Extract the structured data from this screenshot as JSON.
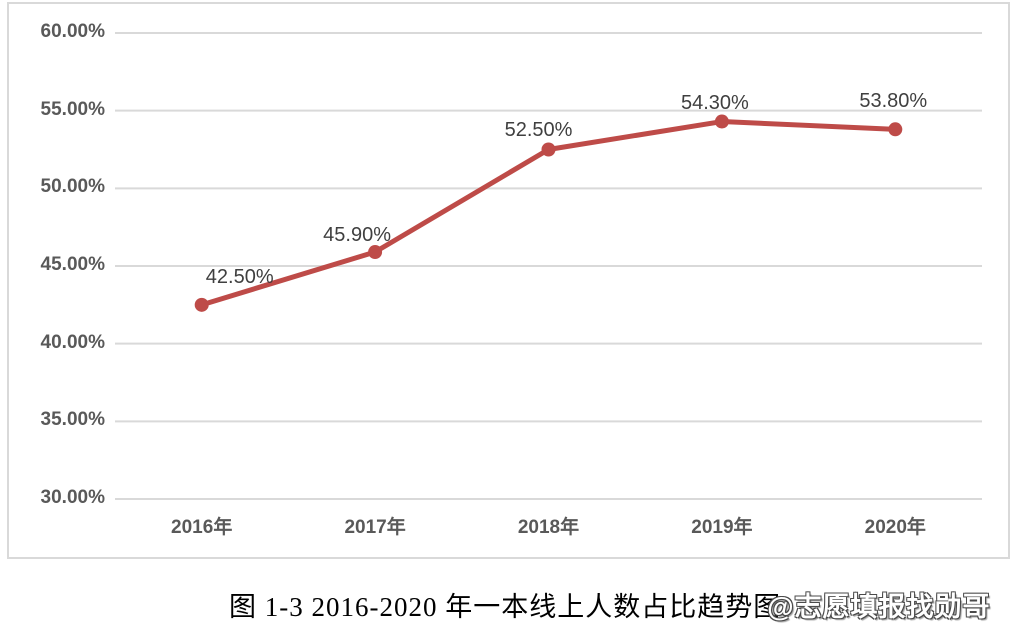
{
  "page": {
    "caption": "图 1-3  2016-2020 年一本线上人数占比趋势图",
    "watermark": "@志愿填报找勋哥"
  },
  "colors": {
    "background": "#ffffff",
    "line": "#be4b48",
    "marker": "#be4b48",
    "grid": "#d9d9d9",
    "frame_border": "#d9d9d9",
    "axis_label": "#595959",
    "data_label": "#3f3f3f",
    "caption": "#000000"
  },
  "chart_data": {
    "type": "line",
    "title": "图 1-3 2016-2020 年一本线上人数占比趋势图",
    "categories": [
      "2016年",
      "2017年",
      "2018年",
      "2019年",
      "2020年"
    ],
    "values": [
      42.5,
      45.9,
      52.5,
      54.3,
      53.8
    ],
    "data_labels": [
      "42.50%",
      "45.90%",
      "52.50%",
      "54.30%",
      "53.80%"
    ],
    "y_ticks": [
      "60.00%",
      "55.00%",
      "50.00%",
      "45.00%",
      "40.00%",
      "35.00%",
      "30.00%"
    ],
    "ylim": [
      30,
      60
    ],
    "y_tick_interval": 5,
    "xlabel": "",
    "ylabel": "",
    "grid": true,
    "legend": "none",
    "marker": "circle",
    "line_width": 5,
    "marker_radius": 7
  }
}
